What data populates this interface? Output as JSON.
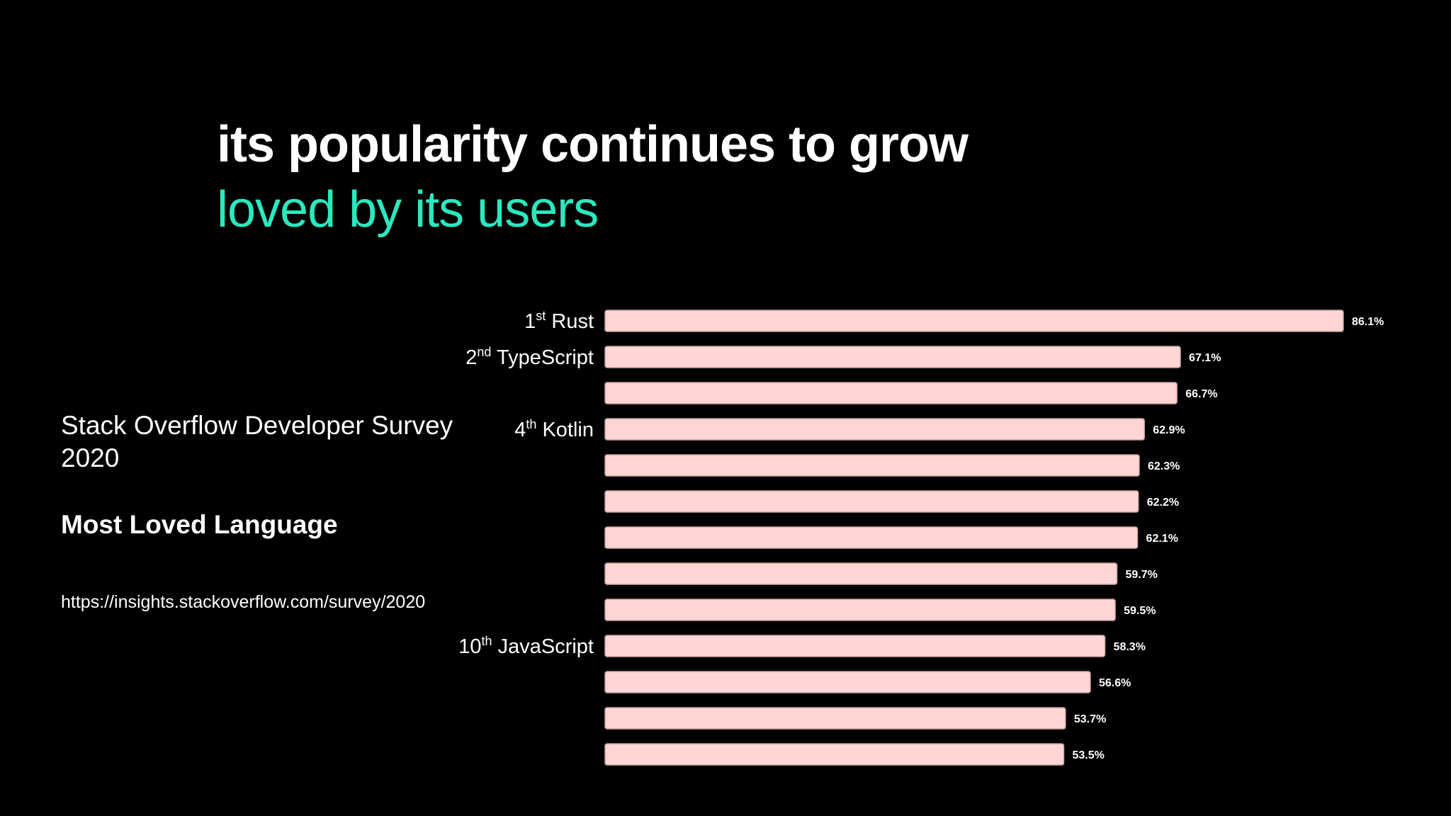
{
  "slide": {
    "title": "its popularity continues to grow",
    "subtitle": "loved by its users",
    "survey_name": "Stack Overflow Developer Survey 2020",
    "chart_heading": "Most Loved Language",
    "source_url": "https://insights.stackoverflow.com/survey/2020"
  },
  "colors": {
    "background": "#000000",
    "subtitle": "#2be8bf",
    "bar_fill": "#ffd6d6",
    "text": "#ffffff"
  },
  "chart_data": {
    "type": "bar",
    "orientation": "horizontal",
    "values": [
      86.1,
      67.1,
      66.7,
      62.9,
      62.3,
      62.2,
      62.1,
      59.7,
      59.5,
      58.3,
      56.6,
      53.7,
      53.5
    ],
    "value_labels": [
      "86.1%",
      "67.1%",
      "66.7%",
      "62.9%",
      "62.3%",
      "62.2%",
      "62.1%",
      "59.7%",
      "59.5%",
      "58.3%",
      "56.6%",
      "53.7%",
      "53.5%"
    ],
    "category_labels": [
      {
        "index": 0,
        "rank": "1",
        "suffix": "st",
        "name": "Rust"
      },
      {
        "index": 1,
        "rank": "2",
        "suffix": "nd",
        "name": "TypeScript"
      },
      {
        "index": 3,
        "rank": "4",
        "suffix": "th",
        "name": "Kotlin"
      },
      {
        "index": 9,
        "rank": "10",
        "suffix": "th",
        "name": "JavaScript"
      }
    ],
    "xlim": [
      0,
      86.1
    ],
    "grid": false,
    "legend": "none"
  }
}
